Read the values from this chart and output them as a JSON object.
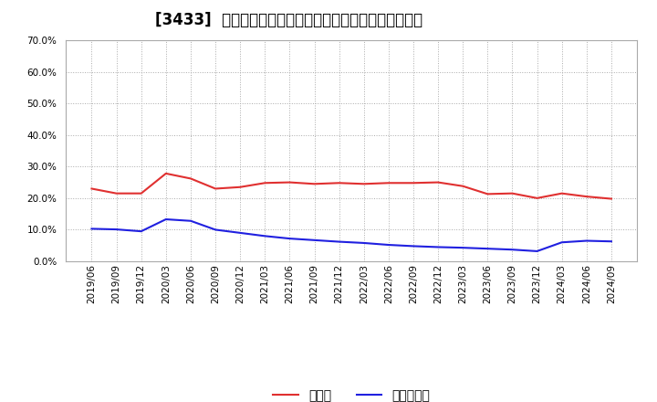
{
  "title": "[3433]  現預金、有利子負債の総資産に対する比率の推移",
  "x_labels": [
    "2019/06",
    "2019/09",
    "2019/12",
    "2020/03",
    "2020/06",
    "2020/09",
    "2020/12",
    "2021/03",
    "2021/06",
    "2021/09",
    "2021/12",
    "2022/03",
    "2022/06",
    "2022/09",
    "2022/12",
    "2023/03",
    "2023/06",
    "2023/09",
    "2023/12",
    "2024/03",
    "2024/06",
    "2024/09"
  ],
  "cash": [
    0.23,
    0.215,
    0.215,
    0.278,
    0.262,
    0.23,
    0.235,
    0.248,
    0.25,
    0.245,
    0.248,
    0.245,
    0.248,
    0.248,
    0.25,
    0.238,
    0.213,
    0.215,
    0.2,
    0.215,
    0.205,
    0.198
  ],
  "debt": [
    0.103,
    0.101,
    0.095,
    0.133,
    0.128,
    0.1,
    0.09,
    0.08,
    0.072,
    0.067,
    0.062,
    0.058,
    0.052,
    0.048,
    0.045,
    0.043,
    0.04,
    0.037,
    0.032,
    0.06,
    0.065,
    0.063
  ],
  "cash_color": "#e03030",
  "debt_color": "#2020e0",
  "bg_color": "#ffffff",
  "grid_color": "#aaaaaa",
  "ylim": [
    0.0,
    0.7
  ],
  "yticks": [
    0.0,
    0.1,
    0.2,
    0.3,
    0.4,
    0.5,
    0.6,
    0.7
  ],
  "legend_cash": "現預金",
  "legend_debt": "有利子負債",
  "title_fontsize": 12,
  "tick_fontsize": 7.5,
  "legend_fontsize": 10
}
